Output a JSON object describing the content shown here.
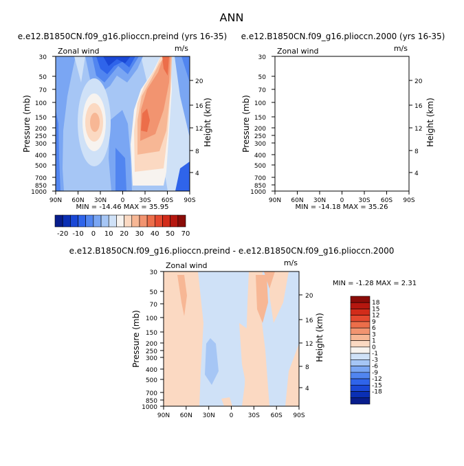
{
  "page": {
    "title": "ANN"
  },
  "colors": {
    "neg": [
      "#081d8c",
      "#0a2fb4",
      "#1a48d6",
      "#2f64ea",
      "#5185f0",
      "#7aa6f3",
      "#a6c6f5",
      "#cfe1f7"
    ],
    "zero": "#f7f3ef",
    "pos": [
      "#fbd9c2",
      "#f7b795",
      "#f29470",
      "#ec6e4a",
      "#e4492f",
      "#d22c1a",
      "#b5170f",
      "#8a0c08"
    ]
  },
  "chart_data": [
    {
      "id": "top-left",
      "type": "heatmap",
      "title": "e.e12.B1850CN.f09_g16.plioccn.preind (yrs 16-35)",
      "left_label": "Zonal wind",
      "right_label": "m/s",
      "xlabel": "",
      "ylabel": "Pressure (mb)",
      "ylabel_right": "Height (km)",
      "x_ticks": [
        "90N",
        "60N",
        "30N",
        "0",
        "30S",
        "60S",
        "90S"
      ],
      "y_ticks": [
        "30",
        "50",
        "70",
        "100",
        "150",
        "200",
        "250",
        "300",
        "400",
        "500",
        "700",
        "850",
        "1000"
      ],
      "right_ticks": [
        "20",
        "16",
        "12",
        "8",
        "4"
      ],
      "stats": "MIN = -14.46   MAX =  35.95",
      "min": -14.46,
      "max": 35.95
    },
    {
      "id": "top-right",
      "type": "heatmap",
      "title": "e.e12.B1850CN.f09_g16.plioccn.2000 (yrs 16-35)",
      "left_label": "Zonal wind",
      "right_label": "m/s",
      "xlabel": "",
      "ylabel": "Pressure (mb)",
      "ylabel_right": "Height (km)",
      "x_ticks": [
        "90N",
        "60N",
        "30N",
        "0",
        "30S",
        "60S",
        "90S"
      ],
      "y_ticks": [
        "30",
        "50",
        "70",
        "100",
        "150",
        "200",
        "250",
        "300",
        "400",
        "500",
        "700",
        "850",
        "1000"
      ],
      "right_ticks": [
        "20",
        "16",
        "12",
        "8",
        "4"
      ],
      "stats": "MIN = -14.18   MAX =  35.26",
      "min": -14.18,
      "max": 35.26
    },
    {
      "id": "bottom",
      "type": "heatmap",
      "title": "e.e12.B1850CN.f09_g16.plioccn.preind - e.e12.B1850CN.f09_g16.plioccn.2000",
      "left_label": "Zonal wind",
      "right_label": "m/s",
      "xlabel": "",
      "ylabel": "Pressure (mb)",
      "ylabel_right": "Height (km)",
      "x_ticks": [
        "90N",
        "60N",
        "30N",
        "0",
        "30S",
        "60S",
        "90S"
      ],
      "y_ticks": [
        "30",
        "50",
        "70",
        "100",
        "150",
        "200",
        "250",
        "300",
        "400",
        "500",
        "700",
        "850",
        "1000"
      ],
      "right_ticks": [
        "20",
        "16",
        "12",
        "8",
        "4"
      ],
      "stats": "MIN =  -1.28   MAX =   2.31",
      "min": -1.28,
      "max": 2.31
    }
  ],
  "colorbar_top": {
    "labels": [
      "-20",
      "-10",
      "0",
      "10",
      "20",
      "30",
      "40",
      "50",
      "70"
    ]
  },
  "colorbar_diff": {
    "labels": [
      "18",
      "15",
      "12",
      "9",
      "6",
      "3",
      "1",
      "0",
      "-1",
      "-3",
      "-6",
      "-9",
      "-12",
      "-15",
      "-18"
    ]
  }
}
